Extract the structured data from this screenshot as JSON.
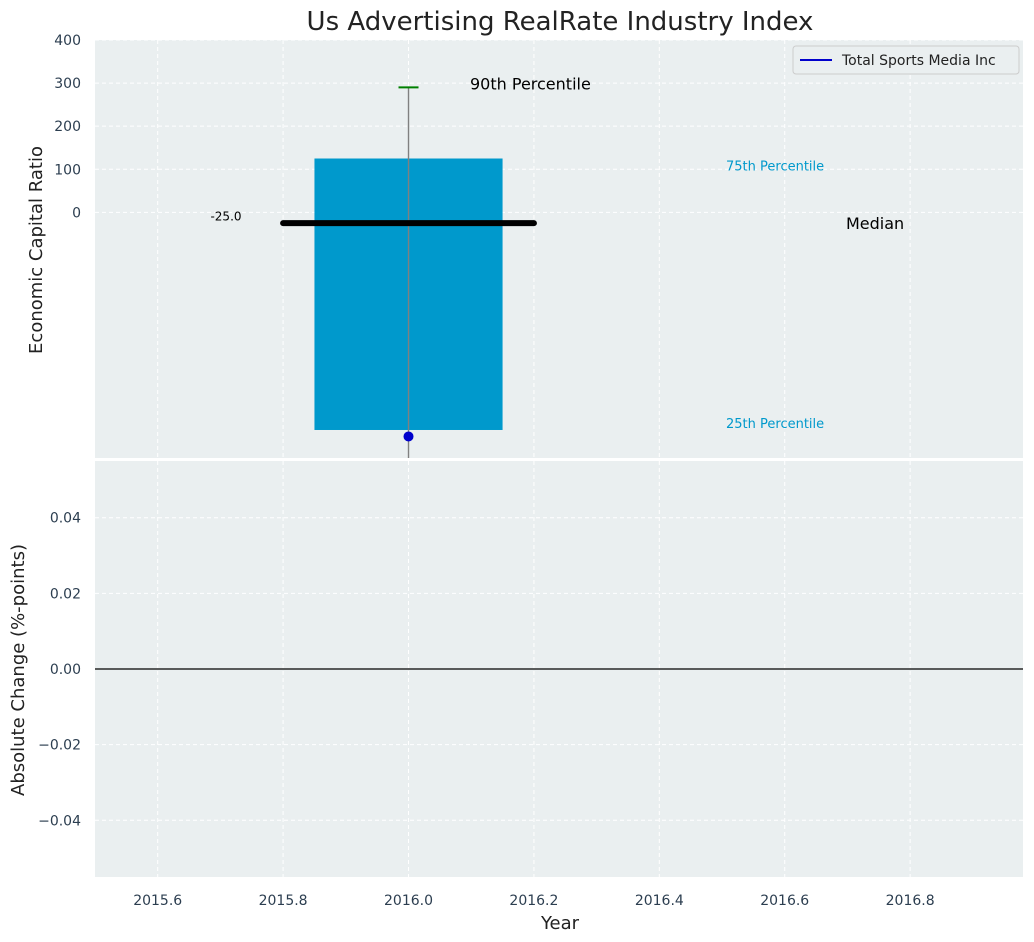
{
  "chart_data": [
    {
      "type": "box",
      "title": "Us Advertising RealRate Industry Index",
      "ylabel": "Economic Capital Ratio",
      "x": 2016.0,
      "xlim": [
        2015.5,
        2016.98
      ],
      "ylim": [
        -570,
        400
      ],
      "yticks": [
        400,
        300,
        200,
        100,
        0
      ],
      "box": {
        "x_from": 2015.85,
        "x_to": 2016.15,
        "p25": -505,
        "p75": 125
      },
      "median": {
        "value": -25,
        "x_from": 2015.8,
        "x_to": 2016.2,
        "label": "-25.0"
      },
      "p90": 290,
      "whisker_low": -570,
      "company_point": {
        "x": 2016.0,
        "y": -520
      },
      "annotations": {
        "p90": "90th Percentile",
        "p75": "75th Percentile",
        "median": "Median",
        "p25": "25th Percentile"
      },
      "legend": {
        "label": "Total Sports Media Inc",
        "color": "#0000cc",
        "placement": "top-right"
      },
      "colors": {
        "box": "#0099cc",
        "median": "#000000",
        "p90": "#008000",
        "background": "#eaeff0"
      },
      "grid": true
    },
    {
      "type": "line",
      "ylabel": "Absolute Change (%-points)",
      "xlabel": "Year",
      "xlim": [
        2015.5,
        2016.98
      ],
      "ylim": [
        -0.055,
        0.055
      ],
      "xticks": [
        "2015.6",
        "2015.8",
        "2016.0",
        "2016.2",
        "2016.4",
        "2016.6",
        "2016.8"
      ],
      "yticks": [
        "0.04",
        "0.02",
        "0.00",
        "−0.02",
        "−0.04"
      ],
      "baseline": 0,
      "grid": true
    }
  ]
}
